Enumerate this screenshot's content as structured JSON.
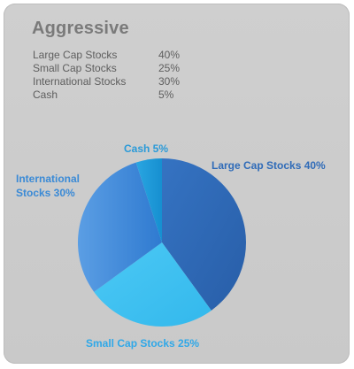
{
  "card": {
    "title": "Aggressive",
    "allocations": [
      {
        "name": "Large Cap Stocks",
        "value": "40%"
      },
      {
        "name": "Small Cap Stocks",
        "value": "25%"
      },
      {
        "name": "International Stocks",
        "value": "30%"
      },
      {
        "name": "Cash",
        "value": "5%"
      }
    ]
  },
  "colors": {
    "background": "#cacaca",
    "title": "#7a7a7a",
    "table_text": "#5e5e5e",
    "label_text": "#2a8fd8"
  },
  "chart_data": {
    "type": "pie",
    "title": "",
    "slices": [
      {
        "label": "Large Cap Stocks",
        "value": 40,
        "display": "Large Cap Stocks 40%",
        "color": "#2f6bb8"
      },
      {
        "label": "Small Cap Stocks",
        "value": 25,
        "display": "Small Cap Stocks 25%",
        "color": "#3fc1f0"
      },
      {
        "label": "International Stocks",
        "value": 30,
        "display_lines": [
          "International",
          "Stocks 30%"
        ],
        "color": "#3b86d6"
      },
      {
        "label": "Cash",
        "value": 5,
        "display": "Cash 5%",
        "color": "#1e9ad8"
      }
    ],
    "start": "12 o'clock",
    "direction": "clockwise"
  }
}
